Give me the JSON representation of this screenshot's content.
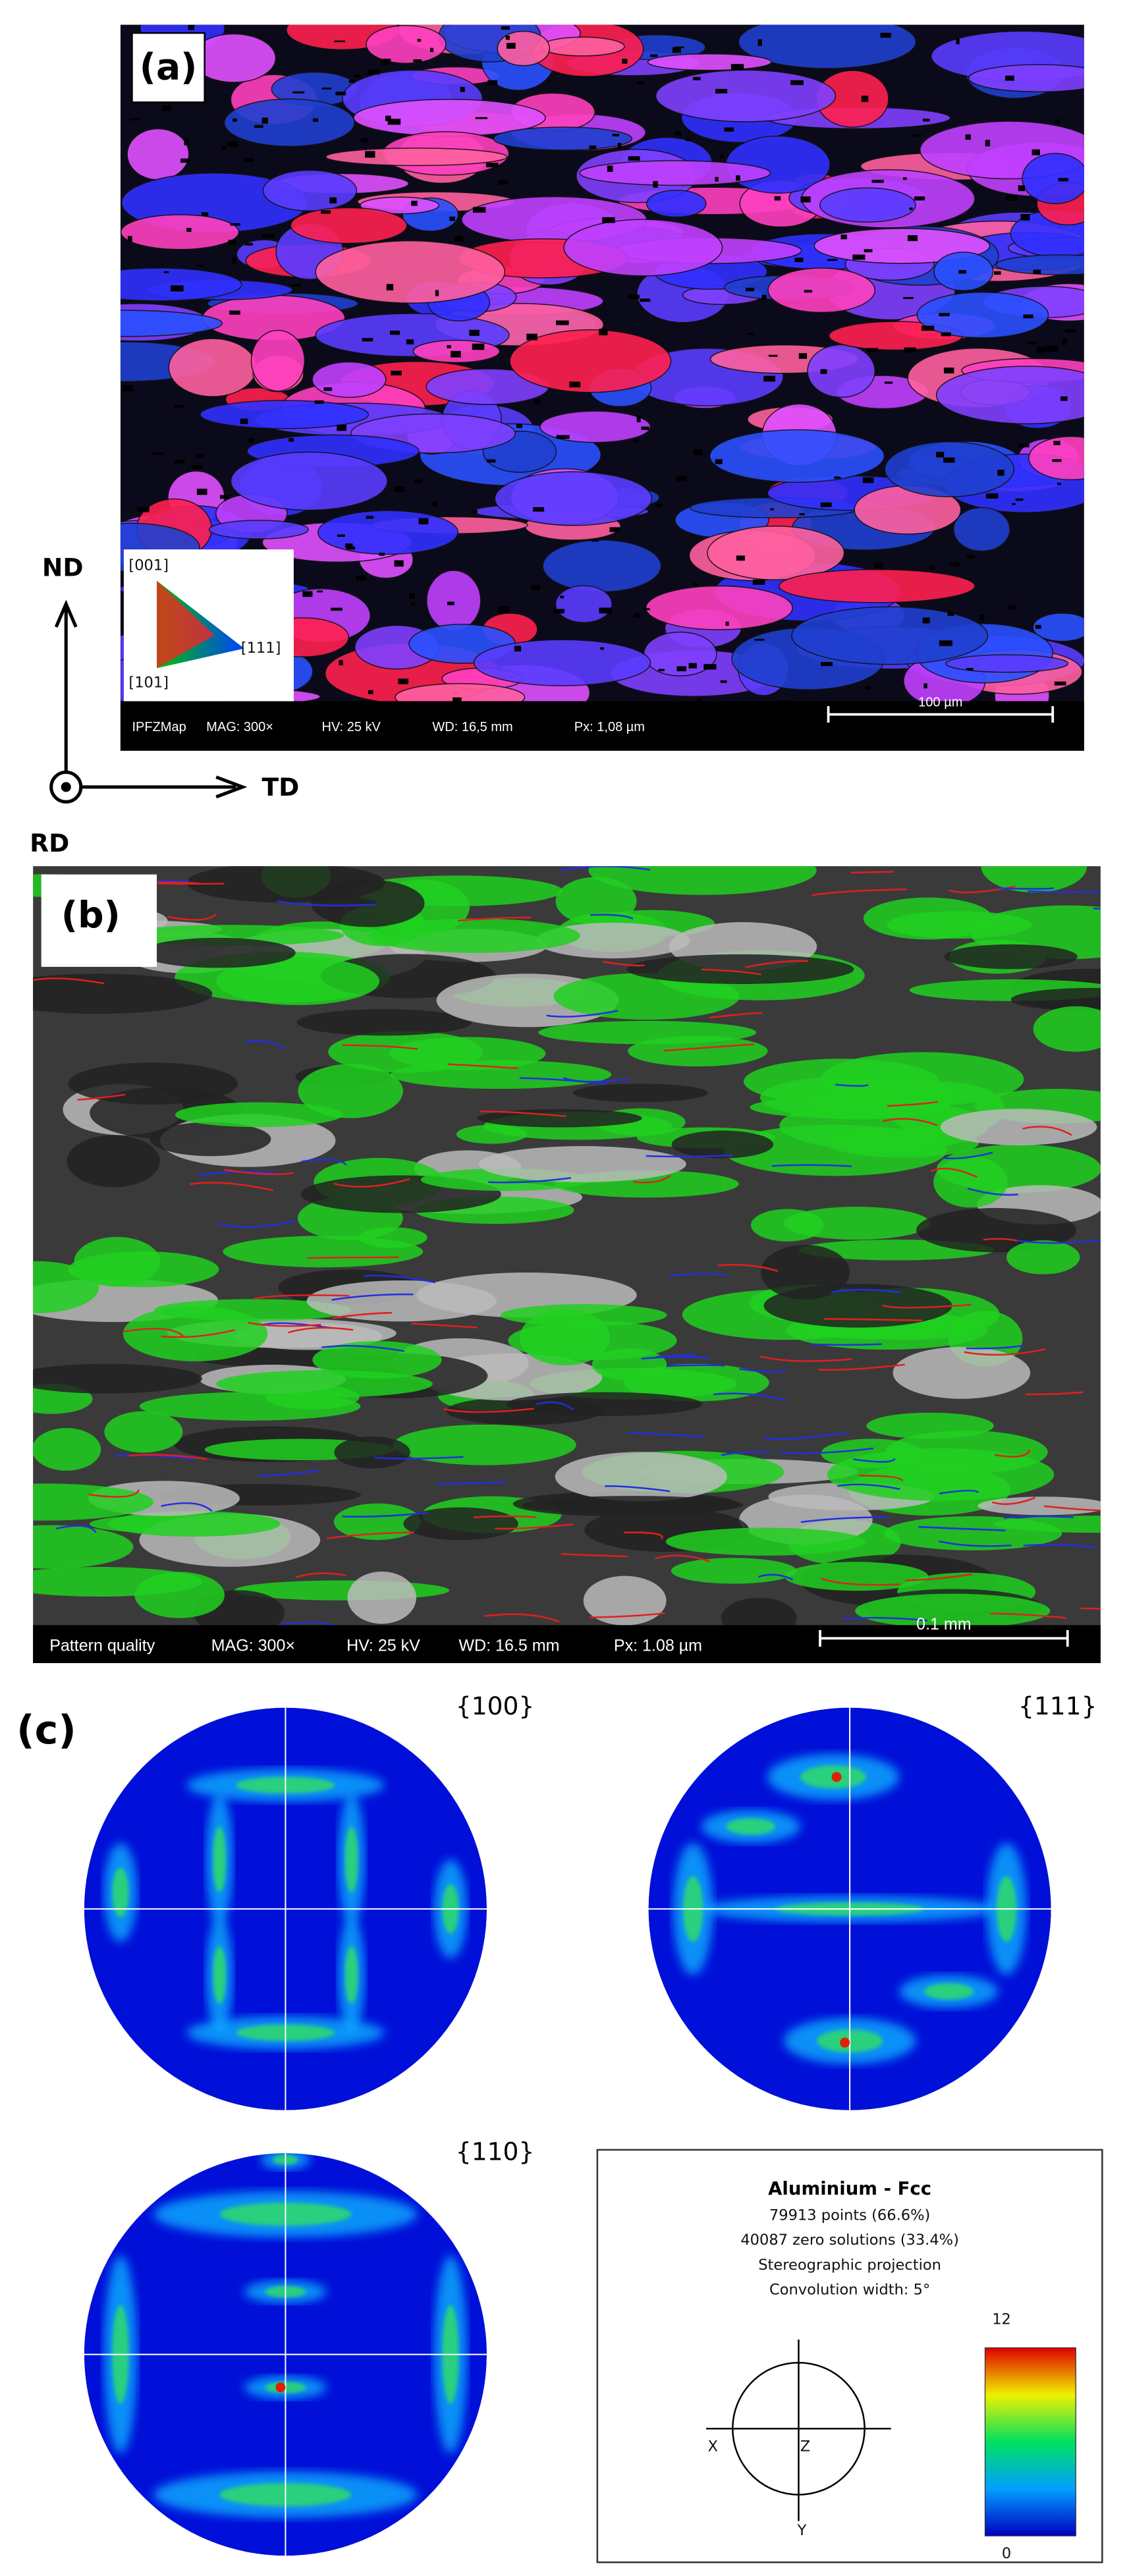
{
  "panel_a": {
    "label": "(a)",
    "legend": {
      "top": "[001]",
      "bottom_left": "[101]",
      "right": "[111]"
    },
    "info_bar": [
      "IPFZMap",
      "MAG: 300×",
      "HV: 25 kV",
      "WD: 16,5 mm",
      "Px: 1,08 µm"
    ],
    "scale_bar": "100 µm"
  },
  "axes": {
    "nd": "ND",
    "td": "TD",
    "rd": "RD"
  },
  "panel_b": {
    "label": "(b)",
    "info_bar": [
      "Pattern quality",
      "MAG: 300×",
      "HV: 25 kV",
      "WD: 16.5 mm",
      "Px: 1.08 µm"
    ],
    "scale_bar": "0.1 mm"
  },
  "panel_c": {
    "label": "(c)",
    "pole_figures": [
      "{100}",
      "{111}",
      "{110}"
    ],
    "legend": {
      "title": "Aluminium - Fcc",
      "lines": [
        "79913 points  (66.6%)",
        "40087 zero solutions (33.4%)",
        "Stereographic projection",
        "Convolution width: 5°"
      ],
      "axes": {
        "x": "X",
        "z": "Z",
        "y": "Y"
      },
      "scale_max": "12",
      "scale_min": "0"
    }
  }
}
